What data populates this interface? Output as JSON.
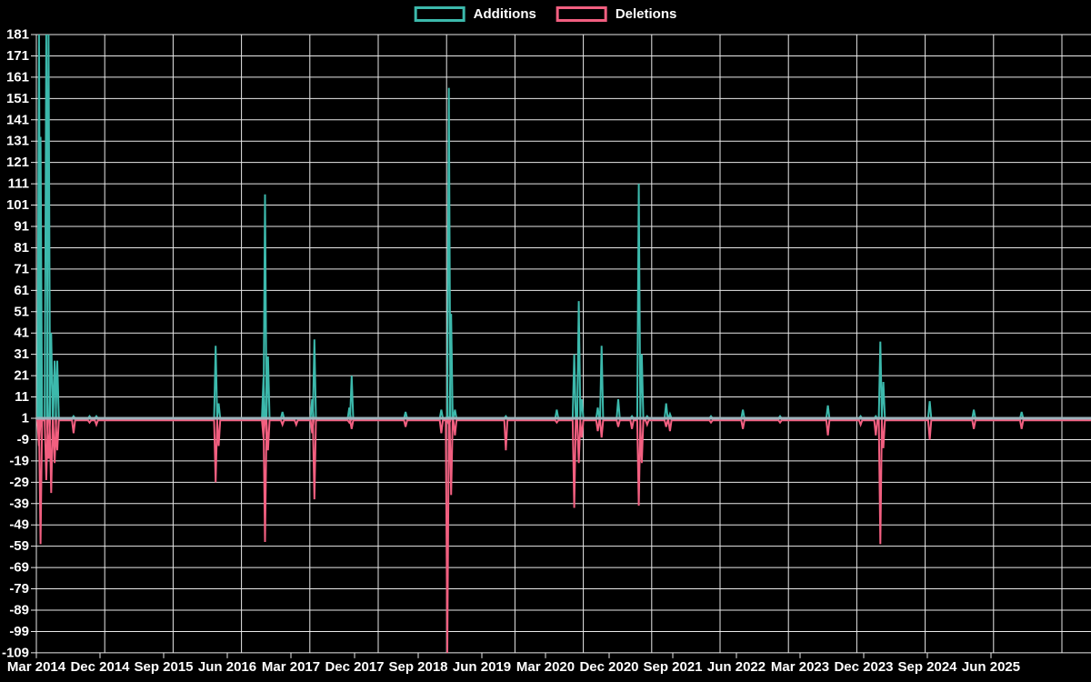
{
  "chart_data": {
    "type": "line",
    "title": "",
    "legend_position": "top-center",
    "background_color": "#000000",
    "grid": true,
    "grid_color": "#e9e9e9",
    "baseline_color": "#9db3bc",
    "text_color": "#ffffff",
    "x_axis": {
      "labels": [
        "Mar 2014",
        "Dec 2014",
        "Sep 2015",
        "Jun 2016",
        "Mar 2017",
        "Dec 2017",
        "Sep 2018",
        "Jun 2019",
        "Mar 2020",
        "Dec 2020",
        "Sep 2021",
        "Jun 2022",
        "Mar 2023",
        "Dec 2023",
        "Sep 2024",
        "Jun 2025"
      ],
      "interval_months": 9
    },
    "y_axis": {
      "ticks": [
        181,
        171,
        161,
        151,
        141,
        131,
        121,
        111,
        101,
        91,
        81,
        71,
        61,
        51,
        41,
        31,
        21,
        11,
        1,
        -9,
        -19,
        -29,
        -39,
        -49,
        -59,
        -69,
        -79,
        -89,
        -99,
        -109
      ],
      "max": 181,
      "min": -109,
      "baseline": 1
    },
    "series": [
      {
        "name": "Additions",
        "color": "#3cb9ac",
        "rest_value": 1
      },
      {
        "name": "Deletions",
        "color": "#f25f80",
        "rest_value": 0
      }
    ],
    "points_unit": "[months_after_Mar_2014, additions, deletions]",
    "points": [
      [
        0.35,
        181,
        -12
      ],
      [
        0.55,
        133,
        -58
      ],
      [
        1.3,
        181,
        -28
      ],
      [
        1.6,
        181,
        -18
      ],
      [
        1.95,
        41,
        -34
      ],
      [
        2.4,
        28,
        -20
      ],
      [
        2.75,
        28,
        -14
      ],
      [
        4.9,
        2,
        -6
      ],
      [
        7.0,
        2,
        -1
      ],
      [
        7.9,
        2,
        -2
      ],
      [
        23.6,
        35,
        -29
      ],
      [
        24.0,
        8,
        -12
      ],
      [
        29.9,
        20,
        -8
      ],
      [
        30.1,
        106,
        -57
      ],
      [
        30.5,
        30,
        -14
      ],
      [
        32.4,
        4,
        -2
      ],
      [
        34.2,
        1,
        -2
      ],
      [
        36.3,
        10,
        -6
      ],
      [
        36.6,
        38,
        -37
      ],
      [
        41.2,
        6,
        -1
      ],
      [
        41.5,
        21,
        -4
      ],
      [
        48.6,
        4,
        -3
      ],
      [
        53.3,
        5,
        -6
      ],
      [
        54.1,
        2,
        -109
      ],
      [
        54.3,
        156,
        -2
      ],
      [
        54.6,
        50,
        -35
      ],
      [
        55.1,
        5,
        -7
      ],
      [
        61.8,
        2,
        -14
      ],
      [
        68.5,
        5,
        -1
      ],
      [
        70.8,
        31,
        -41
      ],
      [
        71.4,
        56,
        -20
      ],
      [
        71.8,
        10,
        -8
      ],
      [
        73.9,
        6,
        -5
      ],
      [
        74.4,
        35,
        -8
      ],
      [
        76.6,
        10,
        -3
      ],
      [
        78.4,
        2,
        -4
      ],
      [
        79.3,
        111,
        -40
      ],
      [
        79.7,
        31,
        -20
      ],
      [
        80.4,
        2,
        -2
      ],
      [
        82.9,
        8,
        -3
      ],
      [
        83.4,
        3,
        -5
      ],
      [
        88.8,
        2,
        -1
      ],
      [
        93.0,
        5,
        -4
      ],
      [
        97.9,
        2,
        -1
      ],
      [
        104.2,
        7,
        -7
      ],
      [
        108.5,
        2,
        -2
      ],
      [
        110.5,
        2,
        -7
      ],
      [
        111.1,
        37,
        -58
      ],
      [
        111.5,
        18,
        -13
      ],
      [
        117.6,
        9,
        -9
      ],
      [
        123.4,
        5,
        -4
      ],
      [
        129.7,
        4,
        -4
      ]
    ]
  }
}
